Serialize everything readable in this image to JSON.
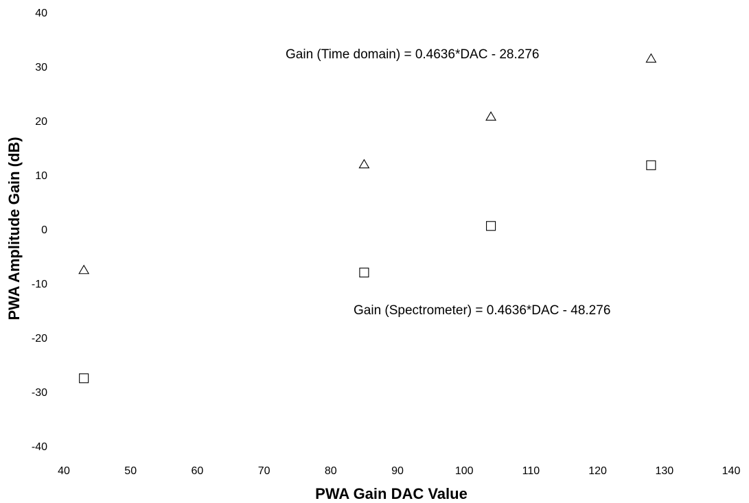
{
  "chart_data": {
    "type": "scatter",
    "xlabel": "PWA Gain DAC Value",
    "ylabel": "PWA Amplitude Gain (dB)",
    "xlim": [
      40,
      140
    ],
    "ylim": [
      -40,
      40
    ],
    "grid": false,
    "x_ticks": [
      "40",
      "50",
      "60",
      "70",
      "80",
      "90",
      "100",
      "110",
      "120",
      "130",
      "140"
    ],
    "y_ticks": [
      "40",
      "30",
      "20",
      "10",
      "0",
      "-10",
      "-20",
      "-30",
      "-40"
    ],
    "series": [
      {
        "marker": "triangle",
        "x": [
          43,
          85,
          104,
          128
        ],
        "y": [
          -7.5,
          12,
          20.8,
          31.5
        ]
      },
      {
        "marker": "square",
        "x": [
          43,
          85,
          104,
          128
        ],
        "y": [
          -27.5,
          -8,
          0.6,
          11.8
        ]
      }
    ],
    "annotations": [
      "Gain (Time domain) = 0.4636*DAC - 28.276",
      "Gain (Spectrometer) = 0.4636*DAC - 48.276"
    ]
  }
}
